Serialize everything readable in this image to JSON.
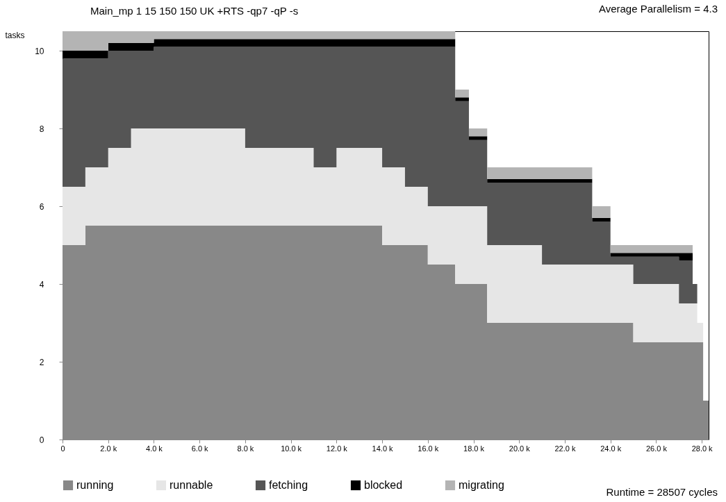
{
  "chart_data": {
    "type": "area",
    "title": "Main_mp 1 15 150 150 UK +RTS -qp7 -qP -s",
    "ylabel": "tasks",
    "annotations": [
      "Average Parallelism = 4.3",
      "Runtime = 28507 cycles"
    ],
    "stacked": true,
    "legend": "bottom",
    "grid": false,
    "x": [
      0,
      1000,
      2000,
      3000,
      4000,
      5000,
      6000,
      7000,
      8000,
      9000,
      10000,
      11000,
      12000,
      13000,
      14000,
      15000,
      16000,
      17200,
      17800,
      18600,
      20000,
      21000,
      22000,
      23200,
      24000,
      25000,
      26000,
      27000,
      27600,
      27800,
      28060,
      28300
    ],
    "xlim": [
      0,
      28300
    ],
    "ylim": [
      0,
      10.5
    ],
    "xticks": [
      0,
      {
        "value": 2000,
        "label": "2.0 k"
      },
      {
        "value": 4000,
        "label": "4.0 k"
      },
      {
        "value": 6000,
        "label": "6.0 k"
      },
      {
        "value": 8000,
        "label": "8.0 k"
      },
      {
        "value": 10000,
        "label": "10.0 k"
      },
      {
        "value": 12000,
        "label": "12.0 k"
      },
      {
        "value": 14000,
        "label": "14.0 k"
      },
      {
        "value": 16000,
        "label": "16.0 k"
      },
      {
        "value": 18000,
        "label": "18.0 k"
      },
      {
        "value": 20000,
        "label": "20.0 k"
      },
      {
        "value": 22000,
        "label": "22.0 k"
      },
      {
        "value": 24000,
        "label": "24.0 k"
      },
      {
        "value": 26000,
        "label": "26.0 k"
      },
      {
        "value": 28000,
        "label": "28.0 k"
      }
    ],
    "yticks": [
      0,
      2,
      4,
      6,
      8,
      10
    ],
    "series": [
      {
        "name": "running",
        "color": "#888888",
        "values": [
          5,
          5.5,
          5.5,
          5.5,
          5.5,
          5.5,
          5.5,
          5.5,
          5.5,
          5.5,
          5.5,
          5.5,
          5.5,
          5.5,
          5,
          5,
          4.5,
          4,
          4,
          3,
          3,
          3,
          3,
          3,
          3,
          2.5,
          2.5,
          2.5,
          2.5,
          2.5,
          1,
          0
        ]
      },
      {
        "name": "runnable",
        "color": "#e6e6e6",
        "values": [
          1.5,
          1.5,
          2,
          2.5,
          2.5,
          2.5,
          2.5,
          2.5,
          2,
          2,
          2,
          1.5,
          2,
          2,
          2,
          1.5,
          1.5,
          2,
          2,
          2,
          2,
          1.5,
          1.5,
          1.5,
          1.5,
          1.5,
          1.5,
          1,
          1,
          0.5,
          0,
          0
        ]
      },
      {
        "name": "fetching",
        "color": "#555555",
        "values": [
          3.3,
          2.8,
          2.5,
          2,
          2.1,
          2.1,
          2.1,
          2.1,
          2.6,
          2.6,
          2.6,
          3.1,
          2.6,
          2.6,
          3.1,
          3.6,
          4.1,
          2.7,
          1.7,
          1.6,
          1.6,
          2.1,
          2.1,
          1.1,
          0.2,
          0.7,
          0.7,
          1.1,
          0.5,
          0,
          0,
          0
        ]
      },
      {
        "name": "blocked",
        "color": "#000000",
        "values": [
          0.2,
          0.2,
          0.2,
          0.2,
          0.2,
          0.2,
          0.2,
          0.2,
          0.2,
          0.2,
          0.2,
          0.2,
          0.2,
          0.2,
          0.2,
          0.2,
          0.2,
          0.1,
          0.1,
          0.1,
          0.1,
          0.1,
          0.1,
          0.1,
          0.1,
          0.1,
          0.1,
          0.2,
          0,
          0,
          0,
          0
        ]
      },
      {
        "name": "migrating",
        "color": "#b4b4b4",
        "values": [
          0.5,
          0.5,
          0.3,
          0.3,
          0.2,
          0.2,
          0.2,
          0.2,
          0.2,
          0.2,
          0.2,
          0.2,
          0.2,
          0.2,
          0.2,
          0.2,
          0.2,
          0.2,
          0.2,
          0.3,
          0.3,
          0.3,
          0.3,
          0.3,
          0.2,
          0.2,
          0.2,
          0.2,
          0,
          0,
          0,
          0
        ]
      }
    ]
  }
}
